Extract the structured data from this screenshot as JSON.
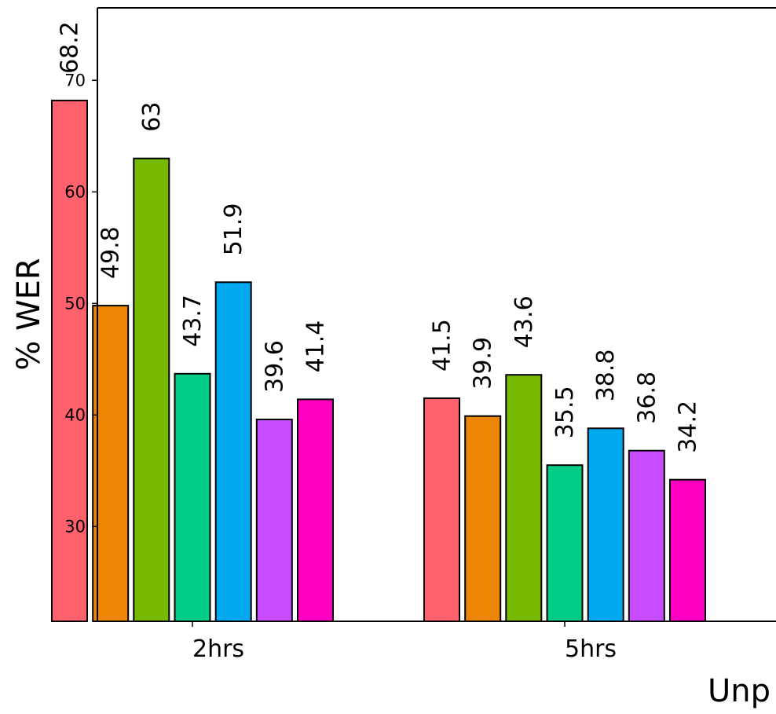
{
  "chart_data": {
    "type": "bar",
    "ylabel": "% WER",
    "xlabel": "Unp",
    "categories": [
      "2hrs",
      "5hrs"
    ],
    "ylim": [
      21.5,
      76.5
    ],
    "yticks": [
      30,
      40,
      50,
      60,
      70
    ],
    "grid": false,
    "series": [
      {
        "color": "#ff626d",
        "values": [
          68.2,
          41.5
        ],
        "labels": [
          "68.2",
          "41.5"
        ]
      },
      {
        "color": "#ec8504",
        "values": [
          49.8,
          39.9
        ],
        "labels": [
          "49.8",
          "39.9"
        ]
      },
      {
        "color": "#76b900",
        "values": [
          63,
          43.6
        ],
        "labels": [
          "63",
          "43.6"
        ]
      },
      {
        "color": "#00cc88",
        "values": [
          43.7,
          35.5
        ],
        "labels": [
          "43.7",
          "35.5"
        ]
      },
      {
        "color": "#00a8ef",
        "values": [
          51.9,
          38.8
        ],
        "labels": [
          "51.9",
          "38.8"
        ]
      },
      {
        "color": "#c74bff",
        "values": [
          39.6,
          36.8
        ],
        "labels": [
          "39.6",
          "36.8"
        ]
      },
      {
        "color": "#ff00c0",
        "values": [
          41.4,
          34.2
        ],
        "labels": [
          "41.4",
          "34.2"
        ]
      }
    ]
  }
}
